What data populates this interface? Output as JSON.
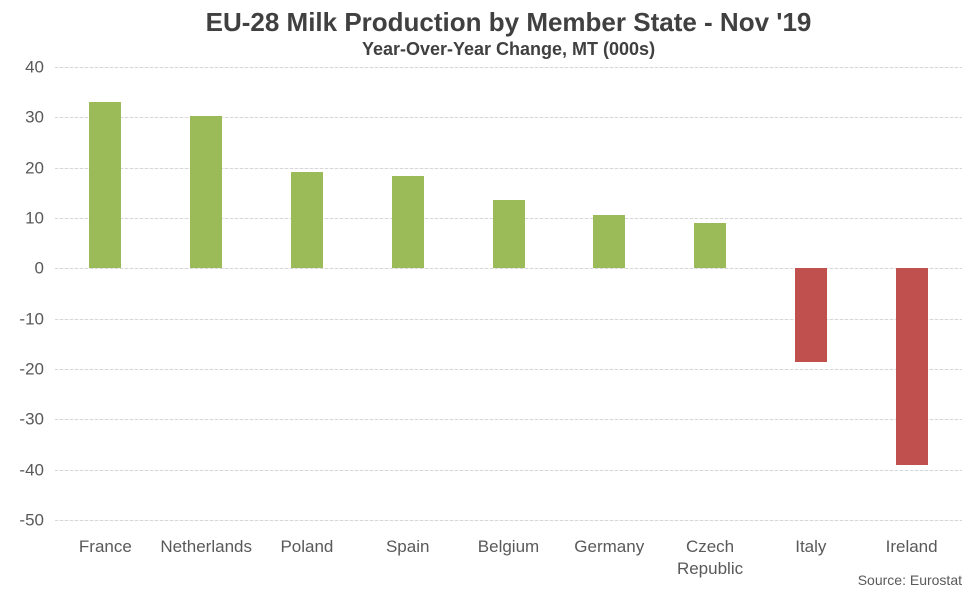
{
  "chart": {
    "title": "EU-28 Milk Production by Member State - Nov '19",
    "subtitle": "Year-Over-Year Change, MT (000s)",
    "source": "Source: Eurostat"
  },
  "chart_data": {
    "type": "bar",
    "title": "EU-28 Milk Production by Member State - Nov '19",
    "subtitle": "Year-Over-Year Change, MT (000s)",
    "categories": [
      "France",
      "Netherlands",
      "Poland",
      "Spain",
      "Belgium",
      "Germany",
      "Czech Republic",
      "Italy",
      "Ireland"
    ],
    "values": [
      33,
      30.2,
      19.1,
      18.3,
      13.5,
      10.5,
      9,
      -18.7,
      -39
    ],
    "xlabel": "",
    "ylabel": "",
    "ylim": [
      -50,
      40
    ],
    "yticks": [
      40,
      30,
      20,
      10,
      0,
      -10,
      -20,
      -30,
      -40,
      -50
    ],
    "grid": true,
    "legend": "none",
    "bar_color_positive": "#9BBB59",
    "bar_color_negative": "#C0504D",
    "annotations": [
      "Source: Eurostat"
    ]
  },
  "colors": {
    "positive_bar": "#9BBB59",
    "negative_bar": "#C0504D",
    "gridline": "#D6D6D6",
    "axis_text": "#595959",
    "title_text": "#404040"
  }
}
